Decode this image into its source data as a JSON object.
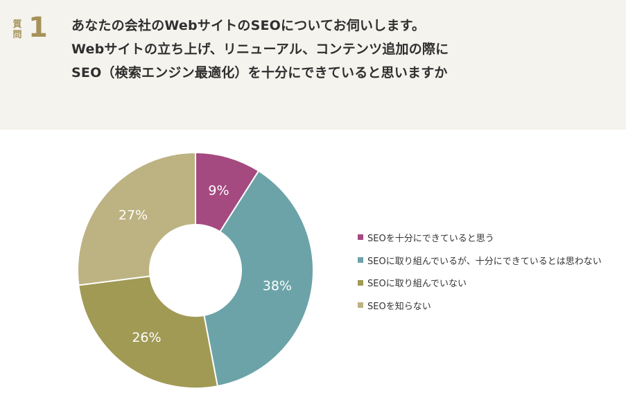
{
  "question": {
    "label": "質問",
    "number": "1",
    "lines": [
      "あなたの会社のWebサイトのSEOについてお伺いします。",
      "Webサイトの立ち上げ、リニューアル、コンテンツ追加の際に",
      "SEO（検索エンジン最適化）を十分にできていると思いますか"
    ]
  },
  "chart_data": {
    "type": "pie",
    "donut": true,
    "legend_position": "right",
    "categories": [
      "SEOを十分にできていると思う",
      "SEOに取り組んでいるが、十分にできているとは思わない",
      "SEOに取り組んでいない",
      "SEOを知らない"
    ],
    "values": [
      9,
      38,
      26,
      27
    ],
    "labels": [
      "9%",
      "38%",
      "26%",
      "27%"
    ],
    "colors": [
      "#a44a80",
      "#6ba3a8",
      "#a19a55",
      "#bdb282"
    ]
  }
}
